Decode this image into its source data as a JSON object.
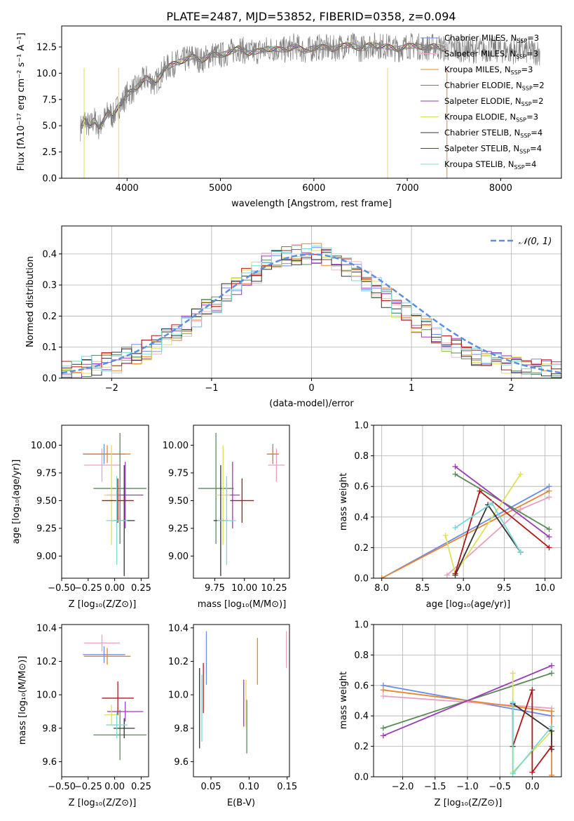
{
  "chart_data": [
    {
      "id": "spectrum",
      "type": "line",
      "title": "PLATE=2487, MJD=53852, FIBERID=0358, z=0.094",
      "xlabel": "wavelength [Angstrom, rest frame]",
      "ylabel": "Flux [fλ10⁻¹⁷ erg cm⁻² s⁻¹ A⁻¹]",
      "xlim": [
        3300,
        8650
      ],
      "ylim": [
        0,
        14.5
      ],
      "xticks": [
        4000,
        5000,
        6000,
        7000,
        8000
      ],
      "yticks": [
        0.0,
        2.5,
        5.0,
        7.5,
        10.0,
        12.5
      ],
      "ytick_labels": [
        "0.0",
        "2.5",
        "5.0",
        "7.5",
        "10.0",
        "12.5"
      ],
      "legend_position": "right",
      "data_series": {
        "name": "data",
        "wavelength": [
          3500,
          3550,
          3600,
          3650,
          3700,
          3750,
          3800,
          3850,
          3900,
          3950,
          4000,
          4100,
          4200,
          4300,
          4400,
          4500,
          4600,
          4700,
          4800,
          4900,
          5000,
          5100,
          5200,
          5300,
          5400,
          5500,
          5600,
          5700,
          5800,
          5900,
          6000,
          6100,
          6200,
          6300,
          6400,
          6500,
          6600,
          6700,
          6800,
          6900,
          7000,
          7100,
          7200,
          7300,
          7400,
          7500,
          7600,
          7700,
          7800,
          7900,
          8000,
          8100,
          8200,
          8300,
          8400
        ],
        "flux": [
          4.8,
          5.5,
          4.9,
          5.6,
          4.8,
          5.5,
          6.3,
          5.9,
          6.8,
          7.2,
          8.0,
          8.6,
          9.6,
          9.0,
          10.4,
          10.9,
          11.2,
          11.6,
          11.2,
          11.8,
          11.7,
          12.0,
          12.4,
          11.9,
          12.1,
          12.3,
          12.3,
          12.2,
          12.6,
          12.1,
          12.4,
          12.5,
          12.3,
          12.6,
          12.7,
          12.3,
          12.7,
          12.6,
          12.5,
          12.3,
          12.6,
          12.6,
          12.4,
          12.6,
          12.3,
          12.4,
          12.3,
          12.2,
          12.2,
          12.3,
          12.2,
          12.1,
          12.2,
          12.1,
          12.0
        ]
      },
      "series": [
        {
          "name": "Chabrier MILES, N_SSP=3",
          "color": "#6a8be8"
        },
        {
          "name": "Salpeter MILES, N_SSP=3",
          "color": "#e8b9c9"
        },
        {
          "name": "Kroupa MILES, N_SSP=3",
          "color": "#e88530"
        },
        {
          "name": "Chabrier ELODIE, N_SSP=2",
          "color": "#5a8a5a"
        },
        {
          "name": "Salpeter ELODIE, N_SSP=2",
          "color": "#9b3bb5"
        },
        {
          "name": "Kroupa ELODIE, N_SSP=3",
          "color": "#dde05a"
        },
        {
          "name": "Chabrier STELIB, N_SSP=4",
          "color": "#333333"
        },
        {
          "name": "Salpeter STELIB, N_SSP=4",
          "color": "#b01818"
        },
        {
          "name": "Kroupa STELIB, N_SSP=4",
          "color": "#7ad8d8"
        }
      ],
      "legend_entries": [
        {
          "prefix": "Chabrier MILES, N",
          "sub": "SSP",
          "suffix": "=3",
          "color": "#6a8be8"
        },
        {
          "prefix": "Salpeter MILES, N",
          "sub": "SSP",
          "suffix": "=3",
          "color": "#e8b9c9"
        },
        {
          "prefix": "Kroupa MILES, N",
          "sub": "SSP",
          "suffix": "=3",
          "color": "#e88530"
        },
        {
          "prefix": "Chabrier ELODIE, N",
          "sub": "SSP",
          "suffix": "=2",
          "color": "#5a8a5a"
        },
        {
          "prefix": "Salpeter ELODIE, N",
          "sub": "SSP",
          "suffix": "=2",
          "color": "#9b3bb5"
        },
        {
          "prefix": "Kroupa ELODIE, N",
          "sub": "SSP",
          "suffix": "=3",
          "color": "#dde05a"
        },
        {
          "prefix": "Chabrier STELIB, N",
          "sub": "SSP",
          "suffix": "=4",
          "color": "#333333"
        },
        {
          "prefix": "Salpeter STELIB, N",
          "sub": "SSP",
          "suffix": "=4",
          "color": "#b01818"
        },
        {
          "prefix": "Kroupa STELIB, N",
          "sub": "SSP",
          "suffix": "=4",
          "color": "#7ad8d8"
        }
      ]
    },
    {
      "id": "residuals",
      "type": "line",
      "xlabel": "(data-model)/error",
      "ylabel": "Normed distribution",
      "xlim": [
        -2.5,
        2.5
      ],
      "ylim": [
        0,
        0.49
      ],
      "xticks": [
        -2,
        -1,
        0,
        1,
        2
      ],
      "xtick_labels": [
        "−2",
        "−1",
        "0",
        "1",
        "2"
      ],
      "yticks": [
        0.0,
        0.1,
        0.2,
        0.3,
        0.4
      ],
      "ytick_labels": [
        "0.0",
        "0.1",
        "0.2",
        "0.3",
        "0.4"
      ],
      "grid": true,
      "legend_position": "top-right",
      "reference_curve": {
        "name": "N(0,1)",
        "color": "#5b8ee0",
        "style": "dashed"
      },
      "histogram_bin_width": 0.1,
      "histogram_values": [
        0.03,
        0.03,
        0.04,
        0.04,
        0.05,
        0.05,
        0.07,
        0.08,
        0.09,
        0.11,
        0.13,
        0.15,
        0.17,
        0.19,
        0.22,
        0.24,
        0.27,
        0.29,
        0.32,
        0.34,
        0.37,
        0.38,
        0.39,
        0.4,
        0.4,
        0.4,
        0.39,
        0.38,
        0.36,
        0.34,
        0.31,
        0.29,
        0.26,
        0.23,
        0.21,
        0.18,
        0.16,
        0.14,
        0.12,
        0.1,
        0.08,
        0.07,
        0.06,
        0.05,
        0.04,
        0.04,
        0.03,
        0.03,
        0.03,
        0.03
      ]
    },
    {
      "id": "age-vs-Z",
      "type": "scatter",
      "xlabel": "Z [log₁₀(Z/Z⊙)]",
      "ylabel": "age  [log₁₀(age/yr)]",
      "xlim": [
        -0.5,
        0.32
      ],
      "ylim": [
        8.8,
        10.18
      ],
      "xticks": [
        -0.5,
        -0.25,
        0.0,
        0.25
      ],
      "xtick_labels": [
        "−0.50",
        "−0.25",
        "0.00",
        "0.25"
      ],
      "yticks": [
        9.0,
        9.25,
        9.5,
        9.75,
        10.0
      ],
      "ytick_labels": [
        "9.00",
        "9.25",
        "9.50",
        "9.75",
        "10.00"
      ],
      "points": [
        {
          "x": -0.1,
          "xerr": 0.2,
          "y": 9.92,
          "yerr": 0.09,
          "color": "#6a8be8"
        },
        {
          "x": -0.12,
          "xerr": 0.17,
          "y": 9.82,
          "yerr": 0.15,
          "color": "#e8a0c0"
        },
        {
          "x": -0.07,
          "xerr": 0.22,
          "y": 9.92,
          "yerr": 0.08,
          "color": "#e88530"
        },
        {
          "x": 0.05,
          "xerr": 0.25,
          "y": 9.61,
          "yerr": 0.5,
          "color": "#5a8a5a"
        },
        {
          "x": 0.1,
          "xerr": 0.17,
          "y": 9.55,
          "yerr": 0.3,
          "color": "#9b3bb5"
        },
        {
          "x": -0.03,
          "xerr": 0.07,
          "y": 9.55,
          "yerr": 0.45,
          "color": "#dde05a"
        },
        {
          "x": 0.09,
          "xerr": 0.1,
          "y": 9.32,
          "yerr": 0.5,
          "color": "#333333"
        },
        {
          "x": 0.03,
          "xerr": 0.15,
          "y": 9.5,
          "yerr": 0.2,
          "color": "#b01818"
        },
        {
          "x": 0.02,
          "xerr": 0.1,
          "y": 9.32,
          "yerr": 0.4,
          "color": "#7ad8d8"
        }
      ]
    },
    {
      "id": "age-vs-mass",
      "type": "scatter",
      "xlabel": "mass [log₁₀(M/M⊙)]",
      "ylabel": "",
      "xlim": [
        9.57,
        10.38
      ],
      "ylim": [
        8.8,
        10.18
      ],
      "xticks": [
        9.75,
        10.0,
        10.25
      ],
      "xtick_labels": [
        "9.75",
        "10.00",
        "10.25"
      ],
      "yticks": [
        9.0,
        9.25,
        9.5,
        9.75,
        10.0
      ],
      "ytick_labels": [
        "9.00",
        "9.25",
        "9.50",
        "9.75",
        "10.00"
      ],
      "points": [
        {
          "x": 10.24,
          "xerr": 0.05,
          "y": 9.92,
          "yerr": 0.09,
          "color": "#6a8be8"
        },
        {
          "x": 10.27,
          "xerr": 0.07,
          "y": 9.82,
          "yerr": 0.15,
          "color": "#e8a0c0"
        },
        {
          "x": 10.24,
          "xerr": 0.05,
          "y": 9.92,
          "yerr": 0.08,
          "color": "#e88530"
        },
        {
          "x": 9.76,
          "xerr": 0.15,
          "y": 9.61,
          "yerr": 0.5,
          "color": "#5a8a5a"
        },
        {
          "x": 9.9,
          "xerr": 0.06,
          "y": 9.55,
          "yerr": 0.3,
          "color": "#9b3bb5"
        },
        {
          "x": 9.82,
          "xerr": 0.06,
          "y": 9.55,
          "yerr": 0.45,
          "color": "#dde05a"
        },
        {
          "x": 9.8,
          "xerr": 0.06,
          "y": 9.32,
          "yerr": 0.5,
          "color": "#333333"
        },
        {
          "x": 9.98,
          "xerr": 0.1,
          "y": 9.5,
          "yerr": 0.2,
          "color": "#b01818"
        },
        {
          "x": 9.85,
          "xerr": 0.08,
          "y": 9.32,
          "yerr": 0.4,
          "color": "#7ad8d8"
        }
      ]
    },
    {
      "id": "weight-vs-age",
      "type": "line",
      "xlabel": "age  [log₁₀(age/yr)]",
      "ylabel": "mass weight",
      "xlim": [
        7.9,
        10.2
      ],
      "ylim": [
        0,
        1
      ],
      "xticks": [
        8.0,
        8.5,
        9.0,
        9.5,
        10.0
      ],
      "xtick_labels": [
        "8.0",
        "8.5",
        "9.0",
        "9.5",
        "10.0"
      ],
      "yticks": [
        0.0,
        0.2,
        0.4,
        0.6,
        0.8,
        1.0
      ],
      "ytick_labels": [
        "0.0",
        "0.2",
        "0.4",
        "0.6",
        "0.8",
        "1.0"
      ],
      "grid": true,
      "series": [
        {
          "color": "#6a8be8",
          "x": [
            8.0,
            10.05
          ],
          "y": [
            0.0,
            0.6
          ]
        },
        {
          "color": "#e8a0c0",
          "x": [
            8.8,
            9.7,
            10.05
          ],
          "y": [
            0.02,
            0.45,
            0.53
          ]
        },
        {
          "color": "#e88530",
          "x": [
            8.0,
            10.05
          ],
          "y": [
            0.0,
            0.57
          ]
        },
        {
          "color": "#5a8a5a",
          "x": [
            8.9,
            10.05
          ],
          "y": [
            0.68,
            0.32
          ]
        },
        {
          "color": "#9b3bb5",
          "x": [
            8.9,
            10.05
          ],
          "y": [
            0.73,
            0.27
          ]
        },
        {
          "color": "#dde05a",
          "x": [
            8.78,
            8.9,
            9.7
          ],
          "y": [
            0.28,
            0.03,
            0.68
          ]
        },
        {
          "color": "#333333",
          "x": [
            8.9,
            9.3,
            9.7
          ],
          "y": [
            0.02,
            0.48,
            0.17
          ]
        },
        {
          "color": "#b01818",
          "x": [
            8.9,
            9.2,
            10.05
          ],
          "y": [
            0.03,
            0.57,
            0.2
          ]
        },
        {
          "color": "#7ad8d8",
          "x": [
            8.9,
            9.35,
            9.7
          ],
          "y": [
            0.33,
            0.49,
            0.17
          ]
        }
      ]
    },
    {
      "id": "mass-vs-Z",
      "type": "scatter",
      "xlabel": "Z [log₁₀(Z/Z⊙)]",
      "ylabel": "mass [log₁₀(M/M⊙)]",
      "xlim": [
        -0.5,
        0.32
      ],
      "ylim": [
        9.51,
        10.42
      ],
      "xticks": [
        -0.5,
        -0.25,
        0.0,
        0.25
      ],
      "xtick_labels": [
        "−0.50",
        "−0.25",
        "0.00",
        "0.25"
      ],
      "yticks": [
        9.6,
        9.8,
        10.0,
        10.2,
        10.4
      ],
      "ytick_labels": [
        "9.6",
        "9.8",
        "10.0",
        "10.2",
        "10.4"
      ],
      "points": [
        {
          "x": -0.1,
          "xerr": 0.2,
          "y": 10.24,
          "yerr": 0.05,
          "color": "#6a8be8"
        },
        {
          "x": -0.12,
          "xerr": 0.17,
          "y": 10.31,
          "yerr": 0.05,
          "color": "#e8a0c0"
        },
        {
          "x": -0.07,
          "xerr": 0.22,
          "y": 10.23,
          "yerr": 0.05,
          "color": "#e88530"
        },
        {
          "x": 0.05,
          "xerr": 0.25,
          "y": 9.76,
          "yerr": 0.15,
          "color": "#5a8a5a"
        },
        {
          "x": 0.1,
          "xerr": 0.17,
          "y": 9.9,
          "yerr": 0.06,
          "color": "#9b3bb5"
        },
        {
          "x": -0.03,
          "xerr": 0.07,
          "y": 9.88,
          "yerr": 0.06,
          "color": "#dde05a"
        },
        {
          "x": 0.09,
          "xerr": 0.1,
          "y": 9.8,
          "yerr": 0.06,
          "color": "#333333"
        },
        {
          "x": 0.03,
          "xerr": 0.15,
          "y": 9.98,
          "yerr": 0.1,
          "color": "#b01818"
        },
        {
          "x": 0.02,
          "xerr": 0.1,
          "y": 9.82,
          "yerr": 0.08,
          "color": "#7ad8d8"
        }
      ]
    },
    {
      "id": "mass-vs-ebv",
      "type": "scatter",
      "xlabel": "E(B-V)",
      "ylabel": "",
      "xlim": [
        0.027,
        0.153
      ],
      "ylim": [
        9.51,
        10.42
      ],
      "xticks": [
        0.05,
        0.1,
        0.15
      ],
      "xtick_labels": [
        "0.05",
        "0.10",
        "0.15"
      ],
      "yticks": [
        9.6,
        9.8,
        10.0,
        10.2,
        10.4
      ],
      "ytick_labels": [
        "9.6",
        "9.8",
        "10.0",
        "10.2",
        "10.4"
      ],
      "points": [
        {
          "x": 0.044,
          "y": 10.22,
          "yerr": 0.16,
          "color": "#6a8be8"
        },
        {
          "x": 0.149,
          "y": 10.27,
          "yerr": 0.11,
          "color": "#e8a0c0"
        },
        {
          "x": 0.111,
          "y": 10.2,
          "yerr": 0.14,
          "color": "#e88530"
        },
        {
          "x": 0.097,
          "y": 9.81,
          "yerr": 0.16,
          "color": "#5a8a5a"
        },
        {
          "x": 0.093,
          "y": 9.95,
          "yerr": 0.14,
          "color": "#9b3bb5"
        },
        {
          "x": 0.096,
          "y": 9.95,
          "yerr": 0.14,
          "color": "#dde05a"
        },
        {
          "x": 0.035,
          "y": 9.92,
          "yerr": 0.24,
          "color": "#333333"
        },
        {
          "x": 0.04,
          "y": 10.04,
          "yerr": 0.15,
          "color": "#b01818"
        },
        {
          "x": 0.038,
          "y": 9.92,
          "yerr": 0.2,
          "color": "#7ad8d8"
        }
      ]
    },
    {
      "id": "weight-vs-Z",
      "type": "line",
      "xlabel": "Z [log₁₀(Z/Z⊙)]",
      "ylabel": "mass weight",
      "xlim": [
        -2.45,
        0.45
      ],
      "ylim": [
        0,
        1
      ],
      "xticks": [
        -2.0,
        -1.5,
        -1.0,
        -0.5,
        0.0
      ],
      "xtick_labels": [
        "−2.0",
        "−1.5",
        "−1.0",
        "−0.5",
        "0.0"
      ],
      "yticks": [
        0.0,
        0.2,
        0.4,
        0.6,
        0.8,
        1.0
      ],
      "ytick_labels": [
        "0.0",
        "0.2",
        "0.4",
        "0.6",
        "0.8",
        "1.0"
      ],
      "grid": true,
      "series": [
        {
          "color": "#6a8be8",
          "x": [
            -2.3,
            0.3
          ],
          "y": [
            0.6,
            0.4
          ]
        },
        {
          "color": "#e8a0c0",
          "x": [
            -2.3,
            0.3
          ],
          "y": [
            0.53,
            0.45
          ]
        },
        {
          "color": "#e88530",
          "x": [
            -2.3,
            0.3,
            0.3
          ],
          "y": [
            0.57,
            0.43,
            0.01
          ]
        },
        {
          "color": "#5a8a5a",
          "x": [
            -2.3,
            0.3
          ],
          "y": [
            0.32,
            0.68
          ]
        },
        {
          "color": "#9b3bb5",
          "x": [
            -2.3,
            0.3
          ],
          "y": [
            0.27,
            0.73
          ]
        },
        {
          "color": "#dde05a",
          "x": [
            -0.3,
            -0.3,
            0.3
          ],
          "y": [
            0.68,
            0.03,
            0.3
          ]
        },
        {
          "color": "#333333",
          "x": [
            -0.3,
            -0.3,
            0.3,
            0.3
          ],
          "y": [
            0.2,
            0.48,
            0.3,
            0.18
          ]
        },
        {
          "color": "#b01818",
          "x": [
            -0.3,
            0.0,
            0.0,
            0.3
          ],
          "y": [
            0.2,
            0.57,
            0.03,
            0.2
          ]
        },
        {
          "color": "#7ad8d8",
          "x": [
            -0.3,
            -0.3,
            0.3
          ],
          "y": [
            0.49,
            0.02,
            0.33
          ]
        }
      ]
    }
  ]
}
